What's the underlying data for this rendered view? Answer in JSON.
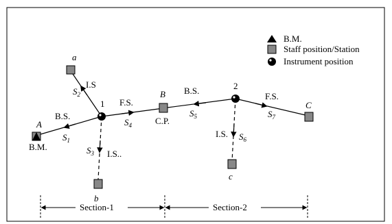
{
  "legend": {
    "bm": "B.M.",
    "staff": "Staff position/Station",
    "instrument": "Instrument position"
  },
  "points": {
    "A": "A",
    "B": "B",
    "C": "C",
    "a": "a",
    "b": "b",
    "c": "c",
    "inst1": "1",
    "inst2": "2"
  },
  "point_labels": {
    "bm_below_A": "B.M.",
    "cp_below_B": "C.P."
  },
  "readings": {
    "bs1": "B.S.",
    "is_a": "I.S",
    "fs1": "F.S.",
    "is_b": "I.S..",
    "bs2": "B.S.",
    "fs2": "F.S.",
    "is_c": "I.S."
  },
  "sights": {
    "s1": {
      "letter": "S",
      "sub": "1"
    },
    "s2": {
      "letter": "S",
      "sub": "2"
    },
    "s3": {
      "letter": "S",
      "sub": "3"
    },
    "s4": {
      "letter": "S",
      "sub": "4"
    },
    "s5": {
      "letter": "S",
      "sub": "5"
    },
    "s6": {
      "letter": "S",
      "sub": "6"
    },
    "s7": {
      "letter": "S",
      "sub": "7"
    }
  },
  "sections": {
    "section1": "Section-1",
    "section2": "Section-2"
  },
  "colors": {
    "line": "#000000",
    "staff_fill": "#888888",
    "background": "#ffffff"
  }
}
